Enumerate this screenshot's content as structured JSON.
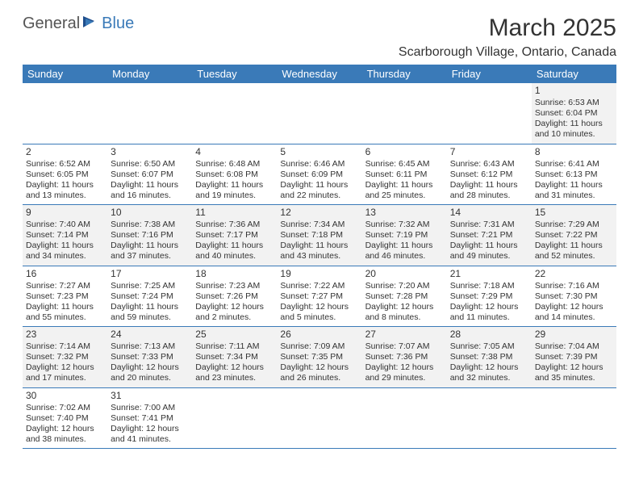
{
  "logo": {
    "text1": "General",
    "text2": "Blue"
  },
  "title": "March 2025",
  "location": "Scarborough Village, Ontario, Canada",
  "colors": {
    "header_bg": "#3a7ab8",
    "header_text": "#ffffff",
    "row_alt_bg": "#f2f2f2",
    "border": "#3a7ab8",
    "text": "#333333",
    "logo_gray": "#555555",
    "logo_blue": "#3a7ab8"
  },
  "day_headers": [
    "Sunday",
    "Monday",
    "Tuesday",
    "Wednesday",
    "Thursday",
    "Friday",
    "Saturday"
  ],
  "weeks": [
    [
      null,
      null,
      null,
      null,
      null,
      null,
      {
        "n": "1",
        "sr": "Sunrise: 6:53 AM",
        "ss": "Sunset: 6:04 PM",
        "dl1": "Daylight: 11 hours",
        "dl2": "and 10 minutes."
      }
    ],
    [
      {
        "n": "2",
        "sr": "Sunrise: 6:52 AM",
        "ss": "Sunset: 6:05 PM",
        "dl1": "Daylight: 11 hours",
        "dl2": "and 13 minutes."
      },
      {
        "n": "3",
        "sr": "Sunrise: 6:50 AM",
        "ss": "Sunset: 6:07 PM",
        "dl1": "Daylight: 11 hours",
        "dl2": "and 16 minutes."
      },
      {
        "n": "4",
        "sr": "Sunrise: 6:48 AM",
        "ss": "Sunset: 6:08 PM",
        "dl1": "Daylight: 11 hours",
        "dl2": "and 19 minutes."
      },
      {
        "n": "5",
        "sr": "Sunrise: 6:46 AM",
        "ss": "Sunset: 6:09 PM",
        "dl1": "Daylight: 11 hours",
        "dl2": "and 22 minutes."
      },
      {
        "n": "6",
        "sr": "Sunrise: 6:45 AM",
        "ss": "Sunset: 6:11 PM",
        "dl1": "Daylight: 11 hours",
        "dl2": "and 25 minutes."
      },
      {
        "n": "7",
        "sr": "Sunrise: 6:43 AM",
        "ss": "Sunset: 6:12 PM",
        "dl1": "Daylight: 11 hours",
        "dl2": "and 28 minutes."
      },
      {
        "n": "8",
        "sr": "Sunrise: 6:41 AM",
        "ss": "Sunset: 6:13 PM",
        "dl1": "Daylight: 11 hours",
        "dl2": "and 31 minutes."
      }
    ],
    [
      {
        "n": "9",
        "sr": "Sunrise: 7:40 AM",
        "ss": "Sunset: 7:14 PM",
        "dl1": "Daylight: 11 hours",
        "dl2": "and 34 minutes."
      },
      {
        "n": "10",
        "sr": "Sunrise: 7:38 AM",
        "ss": "Sunset: 7:16 PM",
        "dl1": "Daylight: 11 hours",
        "dl2": "and 37 minutes."
      },
      {
        "n": "11",
        "sr": "Sunrise: 7:36 AM",
        "ss": "Sunset: 7:17 PM",
        "dl1": "Daylight: 11 hours",
        "dl2": "and 40 minutes."
      },
      {
        "n": "12",
        "sr": "Sunrise: 7:34 AM",
        "ss": "Sunset: 7:18 PM",
        "dl1": "Daylight: 11 hours",
        "dl2": "and 43 minutes."
      },
      {
        "n": "13",
        "sr": "Sunrise: 7:32 AM",
        "ss": "Sunset: 7:19 PM",
        "dl1": "Daylight: 11 hours",
        "dl2": "and 46 minutes."
      },
      {
        "n": "14",
        "sr": "Sunrise: 7:31 AM",
        "ss": "Sunset: 7:21 PM",
        "dl1": "Daylight: 11 hours",
        "dl2": "and 49 minutes."
      },
      {
        "n": "15",
        "sr": "Sunrise: 7:29 AM",
        "ss": "Sunset: 7:22 PM",
        "dl1": "Daylight: 11 hours",
        "dl2": "and 52 minutes."
      }
    ],
    [
      {
        "n": "16",
        "sr": "Sunrise: 7:27 AM",
        "ss": "Sunset: 7:23 PM",
        "dl1": "Daylight: 11 hours",
        "dl2": "and 55 minutes."
      },
      {
        "n": "17",
        "sr": "Sunrise: 7:25 AM",
        "ss": "Sunset: 7:24 PM",
        "dl1": "Daylight: 11 hours",
        "dl2": "and 59 minutes."
      },
      {
        "n": "18",
        "sr": "Sunrise: 7:23 AM",
        "ss": "Sunset: 7:26 PM",
        "dl1": "Daylight: 12 hours",
        "dl2": "and 2 minutes."
      },
      {
        "n": "19",
        "sr": "Sunrise: 7:22 AM",
        "ss": "Sunset: 7:27 PM",
        "dl1": "Daylight: 12 hours",
        "dl2": "and 5 minutes."
      },
      {
        "n": "20",
        "sr": "Sunrise: 7:20 AM",
        "ss": "Sunset: 7:28 PM",
        "dl1": "Daylight: 12 hours",
        "dl2": "and 8 minutes."
      },
      {
        "n": "21",
        "sr": "Sunrise: 7:18 AM",
        "ss": "Sunset: 7:29 PM",
        "dl1": "Daylight: 12 hours",
        "dl2": "and 11 minutes."
      },
      {
        "n": "22",
        "sr": "Sunrise: 7:16 AM",
        "ss": "Sunset: 7:30 PM",
        "dl1": "Daylight: 12 hours",
        "dl2": "and 14 minutes."
      }
    ],
    [
      {
        "n": "23",
        "sr": "Sunrise: 7:14 AM",
        "ss": "Sunset: 7:32 PM",
        "dl1": "Daylight: 12 hours",
        "dl2": "and 17 minutes."
      },
      {
        "n": "24",
        "sr": "Sunrise: 7:13 AM",
        "ss": "Sunset: 7:33 PM",
        "dl1": "Daylight: 12 hours",
        "dl2": "and 20 minutes."
      },
      {
        "n": "25",
        "sr": "Sunrise: 7:11 AM",
        "ss": "Sunset: 7:34 PM",
        "dl1": "Daylight: 12 hours",
        "dl2": "and 23 minutes."
      },
      {
        "n": "26",
        "sr": "Sunrise: 7:09 AM",
        "ss": "Sunset: 7:35 PM",
        "dl1": "Daylight: 12 hours",
        "dl2": "and 26 minutes."
      },
      {
        "n": "27",
        "sr": "Sunrise: 7:07 AM",
        "ss": "Sunset: 7:36 PM",
        "dl1": "Daylight: 12 hours",
        "dl2": "and 29 minutes."
      },
      {
        "n": "28",
        "sr": "Sunrise: 7:05 AM",
        "ss": "Sunset: 7:38 PM",
        "dl1": "Daylight: 12 hours",
        "dl2": "and 32 minutes."
      },
      {
        "n": "29",
        "sr": "Sunrise: 7:04 AM",
        "ss": "Sunset: 7:39 PM",
        "dl1": "Daylight: 12 hours",
        "dl2": "and 35 minutes."
      }
    ],
    [
      {
        "n": "30",
        "sr": "Sunrise: 7:02 AM",
        "ss": "Sunset: 7:40 PM",
        "dl1": "Daylight: 12 hours",
        "dl2": "and 38 minutes."
      },
      {
        "n": "31",
        "sr": "Sunrise: 7:00 AM",
        "ss": "Sunset: 7:41 PM",
        "dl1": "Daylight: 12 hours",
        "dl2": "and 41 minutes."
      },
      null,
      null,
      null,
      null,
      null
    ]
  ]
}
